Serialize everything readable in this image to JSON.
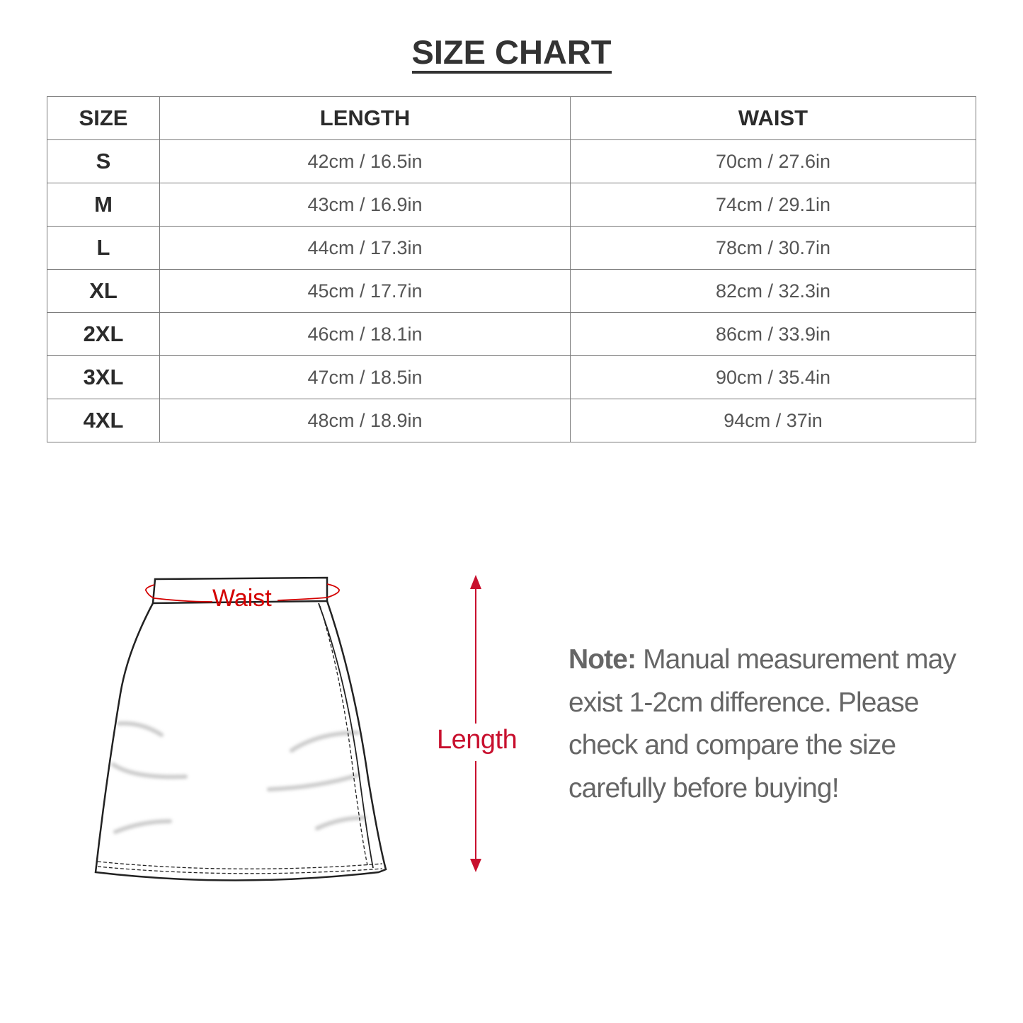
{
  "title": "SIZE CHART",
  "table": {
    "headers": [
      "SIZE",
      "LENGTH",
      "WAIST"
    ],
    "rows": [
      {
        "size": "S",
        "length": "42cm / 16.5in",
        "waist": "70cm / 27.6in"
      },
      {
        "size": "M",
        "length": "43cm / 16.9in",
        "waist": "74cm / 29.1in"
      },
      {
        "size": "L",
        "length": "44cm / 17.3in",
        "waist": "78cm / 30.7in"
      },
      {
        "size": "XL",
        "length": "45cm / 17.7in",
        "waist": "82cm / 32.3in"
      },
      {
        "size": "2XL",
        "length": "46cm / 18.1in",
        "waist": "86cm / 33.9in"
      },
      {
        "size": "3XL",
        "length": "47cm / 18.5in",
        "waist": "90cm / 35.4in"
      },
      {
        "size": "4XL",
        "length": "48cm / 18.9in",
        "waist": "94cm / 37in"
      }
    ]
  },
  "diagram": {
    "waist_label": "Waist",
    "length_label": "Length",
    "accent_color": "#c8102e"
  },
  "note": {
    "label": "Note:",
    "text": " Manual measurement may exist 1-2cm difference. Please check and compare the size carefully before buying!"
  }
}
